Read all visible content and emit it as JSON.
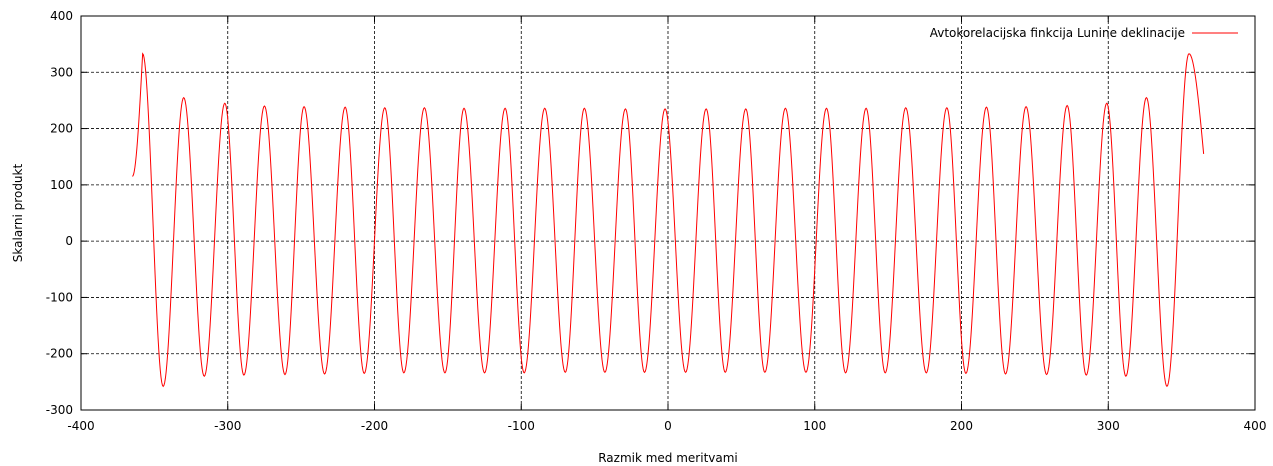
{
  "chart_data": {
    "type": "line",
    "title": "",
    "xlabel": "Razmik med meritvami",
    "ylabel": "Skalarni produkt",
    "xlim": [
      -400,
      400
    ],
    "ylim": [
      -300,
      400
    ],
    "xticks": [
      -400,
      -300,
      -200,
      -100,
      0,
      100,
      200,
      300,
      400
    ],
    "yticks": [
      -300,
      -200,
      -100,
      0,
      100,
      200,
      300,
      400
    ],
    "grid": true,
    "legend_position": "top-right",
    "series": [
      {
        "name": "Avtokorelacijska finkcija Lunine deklinacije",
        "color": "#ff0000",
        "x_range": [
          -365,
          365
        ],
        "period": 27.32,
        "start_value": 115,
        "end_value": 155,
        "peaks": [
          [
            -358,
            333
          ],
          [
            -330,
            255
          ],
          [
            -302,
            245
          ],
          [
            -275,
            240
          ],
          [
            -248,
            239
          ],
          [
            -220,
            238
          ],
          [
            -193,
            237
          ],
          [
            -166,
            237
          ],
          [
            -139,
            236
          ],
          [
            -111,
            236
          ],
          [
            -84,
            236
          ],
          [
            -57,
            236
          ],
          [
            -29,
            235
          ],
          [
            -2,
            235
          ],
          [
            26,
            235
          ],
          [
            53,
            235
          ],
          [
            80,
            236
          ],
          [
            108,
            236
          ],
          [
            135,
            236
          ],
          [
            162,
            237
          ],
          [
            190,
            237
          ],
          [
            217,
            238
          ],
          [
            244,
            239
          ],
          [
            272,
            241
          ],
          [
            299,
            245
          ],
          [
            326,
            255
          ],
          [
            355,
            333
          ]
        ],
        "troughs": [
          [
            -344,
            -258
          ],
          [
            -316,
            -240
          ],
          [
            -289,
            -238
          ],
          [
            -261,
            -237
          ],
          [
            -234,
            -236
          ],
          [
            -207,
            -235
          ],
          [
            -180,
            -234
          ],
          [
            -152,
            -234
          ],
          [
            -125,
            -234
          ],
          [
            -98,
            -234
          ],
          [
            -70,
            -233
          ],
          [
            -43,
            -233
          ],
          [
            -16,
            -233
          ],
          [
            12,
            -233
          ],
          [
            39,
            -233
          ],
          [
            66,
            -233
          ],
          [
            94,
            -233
          ],
          [
            121,
            -234
          ],
          [
            148,
            -234
          ],
          [
            176,
            -234
          ],
          [
            203,
            -235
          ],
          [
            230,
            -236
          ],
          [
            258,
            -237
          ],
          [
            285,
            -238
          ],
          [
            312,
            -240
          ],
          [
            340,
            -258
          ]
        ]
      }
    ]
  }
}
